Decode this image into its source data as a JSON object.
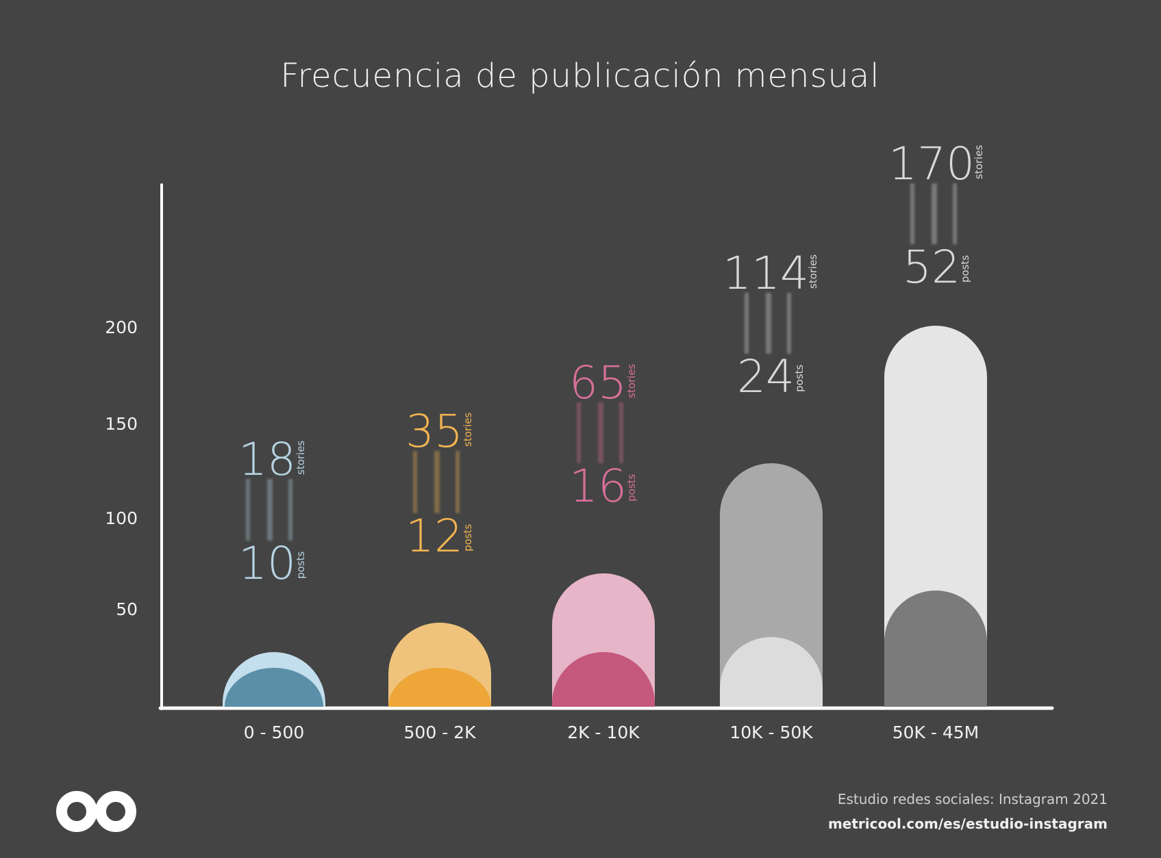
{
  "chart_data": {
    "type": "bar",
    "title": "Frecuencia de publicación mensual",
    "categories": [
      "0 - 500",
      "500 - 2K",
      "2K - 10K",
      "10K - 50K",
      "50K - 45M"
    ],
    "yticks": [
      "200",
      "150",
      "100",
      "50"
    ],
    "series": [
      {
        "name": "stories",
        "values": [
          18,
          35,
          65,
          114,
          170
        ],
        "colors": [
          "#c3deec",
          "#efc37c",
          "#e6b5c8",
          "#a9a9a9",
          "#e5e5e5"
        ]
      },
      {
        "name": "posts",
        "values": [
          10,
          12,
          16,
          24,
          52
        ],
        "colors": [
          "#5b8fa8",
          "#eda637",
          "#c5587d",
          "#dcdcdc",
          "#7b7b7b"
        ]
      }
    ],
    "label_colors": [
      "#b6d3e3",
      "#f2b451",
      "#d9709a",
      "#d9d9d9",
      "#d9d9d9"
    ],
    "unit_labels": {
      "stories": "stories",
      "posts": "posts"
    },
    "grid": false,
    "legend": "none"
  },
  "footer": {
    "study": "Estudio redes sociales: Instagram 2021",
    "url": "metricool.com/es/estudio-instagram"
  },
  "logo": {
    "icon": "metricool-logo-icon"
  }
}
